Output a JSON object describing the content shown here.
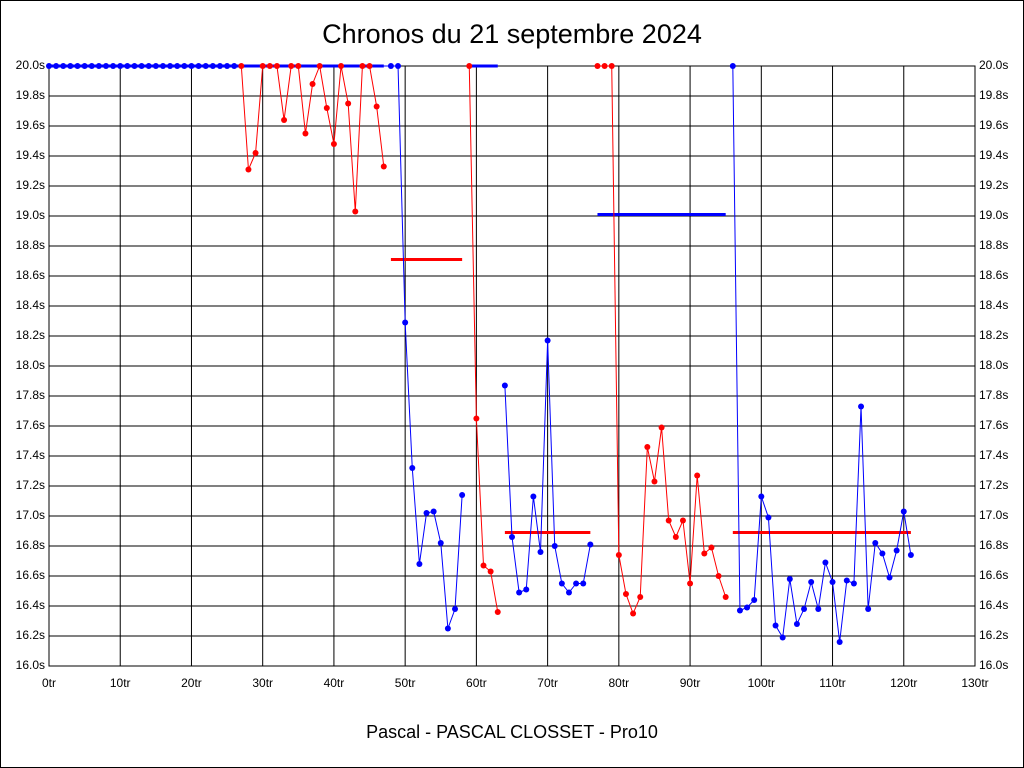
{
  "chart_data": {
    "type": "line",
    "title": "Chronos du 21 septembre 2024",
    "subtitle": "Pascal - PASCAL CLOSSET - Pro10",
    "xlim": [
      0,
      130
    ],
    "xticks": [
      {
        "value": 0,
        "label": "0tr"
      },
      {
        "value": 10,
        "label": "10tr"
      },
      {
        "value": 20,
        "label": "20tr"
      },
      {
        "value": 30,
        "label": "30tr"
      },
      {
        "value": 40,
        "label": "40tr"
      },
      {
        "value": 50,
        "label": "50tr"
      },
      {
        "value": 60,
        "label": "60tr"
      },
      {
        "value": 70,
        "label": "70tr"
      },
      {
        "value": 80,
        "label": "80tr"
      },
      {
        "value": 90,
        "label": "90tr"
      },
      {
        "value": 100,
        "label": "100tr"
      },
      {
        "value": 110,
        "label": "110tr"
      },
      {
        "value": 120,
        "label": "120tr"
      },
      {
        "value": 130,
        "label": "130tr"
      }
    ],
    "ylim": [
      16.0,
      20.0
    ],
    "yticks": [
      {
        "value": 16.0,
        "label": "16.0s"
      },
      {
        "value": 16.2,
        "label": "16.2s"
      },
      {
        "value": 16.4,
        "label": "16.4s"
      },
      {
        "value": 16.6,
        "label": "16.6s"
      },
      {
        "value": 16.8,
        "label": "16.8s"
      },
      {
        "value": 17.0,
        "label": "17.0s"
      },
      {
        "value": 17.2,
        "label": "17.2s"
      },
      {
        "value": 17.4,
        "label": "17.4s"
      },
      {
        "value": 17.6,
        "label": "17.6s"
      },
      {
        "value": 17.8,
        "label": "17.8s"
      },
      {
        "value": 18.0,
        "label": "18.0s"
      },
      {
        "value": 18.2,
        "label": "18.2s"
      },
      {
        "value": 18.4,
        "label": "18.4s"
      },
      {
        "value": 18.6,
        "label": "18.6s"
      },
      {
        "value": 18.8,
        "label": "18.8s"
      },
      {
        "value": 19.0,
        "label": "19.0s"
      },
      {
        "value": 19.2,
        "label": "19.2s"
      },
      {
        "value": 19.4,
        "label": "19.4s"
      },
      {
        "value": 19.6,
        "label": "19.6s"
      },
      {
        "value": 19.8,
        "label": "19.8s"
      },
      {
        "value": 20.0,
        "label": "20.0s"
      }
    ],
    "grid": true,
    "series": [
      {
        "color": "#0000ff",
        "x": [
          0,
          1,
          2,
          3,
          4,
          5,
          6,
          7,
          8,
          9,
          10,
          11,
          12,
          13,
          14,
          15,
          16,
          17,
          18,
          19,
          20,
          21,
          22,
          23,
          24,
          25,
          26,
          48,
          49,
          50,
          51,
          52,
          53,
          54,
          55,
          56,
          57,
          58
        ],
        "values": [
          20,
          20,
          20,
          20,
          20,
          20,
          20,
          20,
          20,
          20,
          20,
          20,
          20,
          20,
          20,
          20,
          20,
          20,
          20,
          20,
          20,
          20,
          20,
          20,
          20,
          20,
          20,
          20,
          20,
          18.29,
          17.32,
          16.68,
          17.02,
          17.03,
          16.82,
          16.25,
          16.38,
          17.14
        ]
      },
      {
        "color": "#ff0000",
        "x": [
          27,
          28,
          29,
          30,
          31,
          32,
          33,
          34,
          35,
          36,
          37,
          38,
          39,
          40,
          41,
          42,
          43,
          44,
          45,
          46,
          47
        ],
        "values": [
          20,
          19.31,
          19.42,
          20,
          20,
          20,
          19.64,
          20,
          20,
          19.55,
          19.88,
          20,
          19.72,
          19.48,
          20,
          19.75,
          19.03,
          20,
          20,
          19.73,
          19.33
        ]
      },
      {
        "color": "#ff0000",
        "x": [
          59,
          60,
          61,
          62,
          63
        ],
        "values": [
          20,
          17.65,
          16.67,
          16.63,
          16.36
        ]
      },
      {
        "color": "#0000ff",
        "x": [
          64,
          65,
          66,
          67,
          68,
          69,
          70,
          71,
          72,
          73,
          74,
          75,
          76
        ],
        "values": [
          17.87,
          16.86,
          16.49,
          16.51,
          17.13,
          16.76,
          18.17,
          16.8,
          16.55,
          16.49,
          16.55,
          16.55,
          16.81
        ]
      },
      {
        "color": "#ff0000",
        "x": [
          77,
          78,
          79,
          80,
          81,
          82,
          83,
          84,
          85,
          86,
          87,
          88,
          89,
          90,
          91,
          92,
          93,
          94,
          95
        ],
        "values": [
          20,
          20,
          20,
          16.74,
          16.48,
          16.35,
          16.46,
          17.46,
          17.23,
          17.59,
          16.97,
          16.86,
          16.97,
          16.55,
          17.27,
          16.75,
          16.79,
          16.6,
          16.46
        ]
      },
      {
        "color": "#0000ff",
        "x": [
          96,
          97,
          98,
          99,
          100,
          101,
          102,
          103,
          104,
          105,
          106,
          107,
          108,
          109,
          110,
          111,
          112,
          113,
          114,
          115,
          116,
          117,
          118,
          119,
          120,
          121
        ],
        "values": [
          20,
          16.37,
          16.39,
          16.44,
          17.13,
          16.99,
          16.27,
          16.19,
          16.58,
          16.28,
          16.38,
          16.56,
          16.38,
          16.69,
          16.56,
          16.16,
          16.57,
          16.55,
          17.73,
          16.38,
          16.82,
          16.75,
          16.59,
          16.77,
          17.03,
          16.74
        ]
      }
    ],
    "mean_lines": [
      {
        "color": "#0000ff",
        "x": [
          0,
          47
        ],
        "value": 20.0
      },
      {
        "color": "#ff0000",
        "x": [
          48,
          58
        ],
        "value": 18.71
      },
      {
        "color": "#0000ff",
        "x": [
          59,
          63
        ],
        "value": 20.0
      },
      {
        "color": "#ff0000",
        "x": [
          64,
          76
        ],
        "value": 16.89
      },
      {
        "color": "#0000ff",
        "x": [
          77,
          95
        ],
        "value": 19.01
      },
      {
        "color": "#ff0000",
        "x": [
          96,
          121
        ],
        "value": 16.89
      }
    ]
  }
}
